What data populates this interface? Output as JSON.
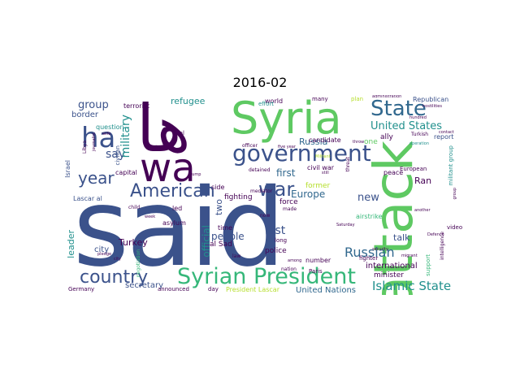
{
  "title": "2016-02",
  "palette": {
    "dark_purple": "#440154",
    "indigo": "#3b528b",
    "blue": "#31688e",
    "teal": "#21908d",
    "green": "#35b779",
    "light_green": "#5ec962",
    "yellow_green": "#b5de2b"
  },
  "words": {
    "said": "said",
    "attack": "attack",
    "syria": "Syria",
    "arabic_glyph": "ها",
    "wa": "wa",
    "ha": "ha",
    "government": "government",
    "syrian_president": "Syrian President",
    "american": "American",
    "war": "war",
    "state": "State",
    "united_states": "United States",
    "country": "country",
    "year": "year",
    "group": "group",
    "say": "say",
    "military": "military",
    "russia": "Russia",
    "russian": "Russian",
    "islamic_state": "Islamic State",
    "united_nations": "United Nations",
    "europe": "Europe",
    "first": "first",
    "last": "last",
    "people": "people",
    "official": "official",
    "refugee": "refugee",
    "turkey": "Turkey",
    "city": "city",
    "leader": "leader",
    "two": "two",
    "new": "new",
    "talk": "talk",
    "international": "international",
    "minister": "minister",
    "secretary": "secretary",
    "border": "border",
    "question": "question",
    "terrorist": "terrorist",
    "republican": "Republican",
    "report": "report",
    "candidate": "candidate",
    "ally": "ally",
    "one": "one",
    "ran": "Ran",
    "civil_war": "civil war",
    "force": "force",
    "fighting": "fighting",
    "israel": "Israel",
    "lascar_al": "Lascar al",
    "al_sad": "al Sad",
    "police": "police",
    "president_lascar": "President Lascar",
    "announced": "announced",
    "germany": "Germany",
    "capital": "capital",
    "asylum": "asylum",
    "world": "world",
    "peace": "peace",
    "former": "former",
    "airstrike": "airstrike",
    "time": "time",
    "led": "led",
    "side": "side",
    "long": "long",
    "day": "day",
    "number": "number",
    "paris": "Paris",
    "fighter": "fighter",
    "support": "support",
    "video": "video",
    "european": "European",
    "deal": "deal",
    "effort": "effort",
    "many": "many",
    "plan": "plan",
    "turkish": "Turkish",
    "militant_group": "militant group",
    "civilian": "civilian",
    "mediator": "mediator",
    "officer": "officer",
    "detained": "detained",
    "child": "child",
    "week": "week",
    "now": "now",
    "made": "made",
    "law": "law",
    "nation": "nation",
    "intelligence": "intelligence",
    "security": "security",
    "migrant": "migrant",
    "saturday": "Saturday",
    "administration": "administration",
    "hostilities": "hostilities",
    "contact": "contact",
    "operation": "operation",
    "hundred": "hundred",
    "threat": "threat",
    "lybia": "Libya",
    "negotiation": "negotiation",
    "wife": "wife",
    "pledge": "pledge",
    "journalist": "journalist",
    "throw": "throw",
    "militant": "Militant",
    "five_year": "five year",
    "still": "still",
    "among": "among",
    "another": "another",
    "flump": "Flump",
    "defence": "Defence",
    "group_small": "group",
    "city_small": "city"
  }
}
